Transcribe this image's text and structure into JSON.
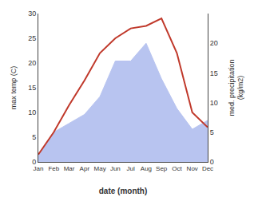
{
  "chart_data": {
    "type": "line",
    "categories": [
      "Jan",
      "Feb",
      "Mar",
      "Apr",
      "May",
      "Jun",
      "Jul",
      "Aug",
      "Sep",
      "Oct",
      "Nov",
      "Dec"
    ],
    "series": [
      {
        "type": "area",
        "axis": "y2",
        "color": "#b8c4f0",
        "values": [
          1.0,
          5.0,
          6.5,
          8.0,
          11.0,
          17.0,
          17.0,
          20.0,
          14.0,
          9.0,
          5.5,
          7.0
        ]
      },
      {
        "type": "line",
        "color": "#c0392b",
        "values": [
          1.5,
          6.0,
          11.5,
          16.5,
          22.0,
          25.0,
          27.0,
          27.5,
          29.0,
          22.0,
          10.0,
          7.0
        ]
      }
    ],
    "xlabel": "date (month)",
    "ylabel": "max temp (C)",
    "y2label": "med. precipitation\n(kg/m2)",
    "ylim": [
      0,
      30
    ],
    "yticks": [
      0,
      5,
      10,
      15,
      20,
      25,
      30
    ],
    "y2lim": [
      0,
      25
    ],
    "y2ticks": [
      0,
      5,
      10,
      15,
      20
    ],
    "grid": false
  }
}
